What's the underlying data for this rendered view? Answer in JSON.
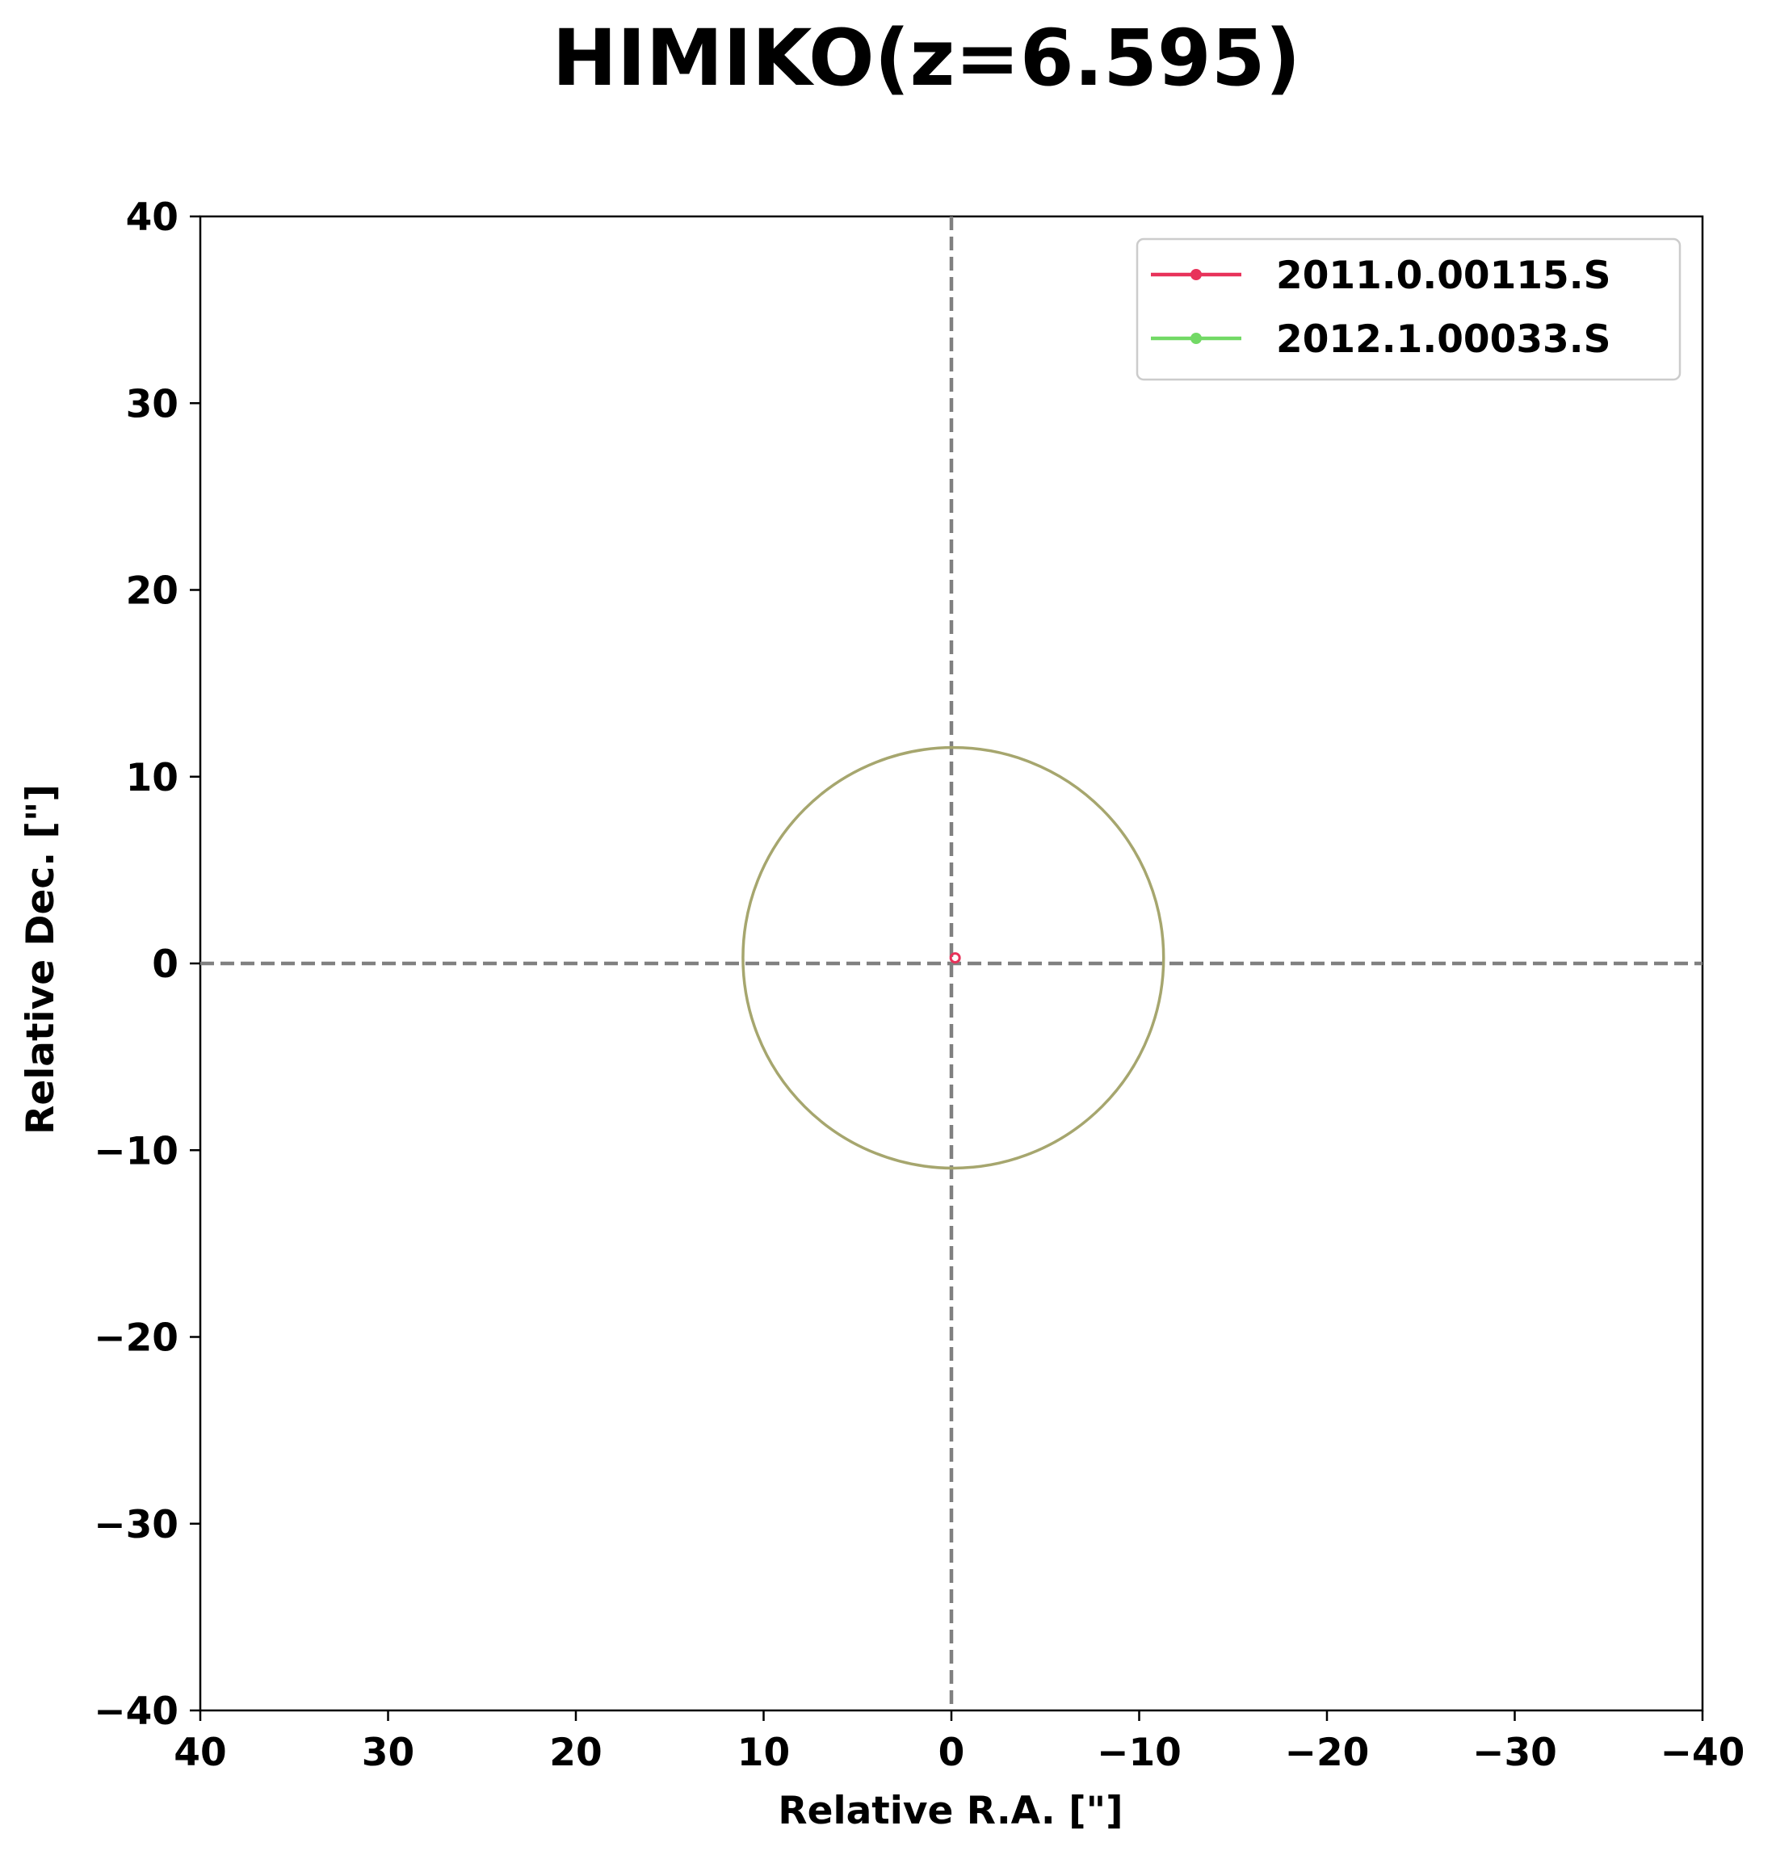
{
  "chart_data": {
    "type": "scatter",
    "title": "HIMIKO(z=6.595)",
    "xlabel": "Relative R.A. [\"]",
    "ylabel": "Relative Dec. [\"]",
    "xlim": [
      40,
      -40
    ],
    "ylim": [
      -40,
      40
    ],
    "x_inverted": true,
    "xticks": [
      40,
      30,
      20,
      10,
      0,
      -10,
      -20,
      -30,
      -40
    ],
    "yticks": [
      40,
      30,
      20,
      10,
      0,
      -10,
      -20,
      -30,
      -40
    ],
    "xtick_labels": [
      "40",
      "30",
      "20",
      "10",
      "0",
      "−10",
      "−20",
      "−30",
      "−40"
    ],
    "ytick_labels": [
      "40",
      "30",
      "20",
      "10",
      "0",
      "−10",
      "−20",
      "−30",
      "−40"
    ],
    "grid": false,
    "reference_lines": [
      {
        "orientation": "vertical",
        "value": 0,
        "style": "dashed",
        "color": "#808080"
      },
      {
        "orientation": "horizontal",
        "value": 0,
        "style": "dashed",
        "color": "#808080"
      }
    ],
    "series": [
      {
        "name": "2011.0.00115.S",
        "color": "#e8325a",
        "points": [
          {
            "x": -0.2,
            "y": 0.3
          }
        ]
      },
      {
        "name": "2012.1.00033.S",
        "color": "#72d965",
        "points": []
      }
    ],
    "circles": [
      {
        "center_x": -0.1,
        "center_y": 0.3,
        "radius": 11.2,
        "color": "#a6a66e"
      }
    ],
    "legend_position": "top-right"
  }
}
